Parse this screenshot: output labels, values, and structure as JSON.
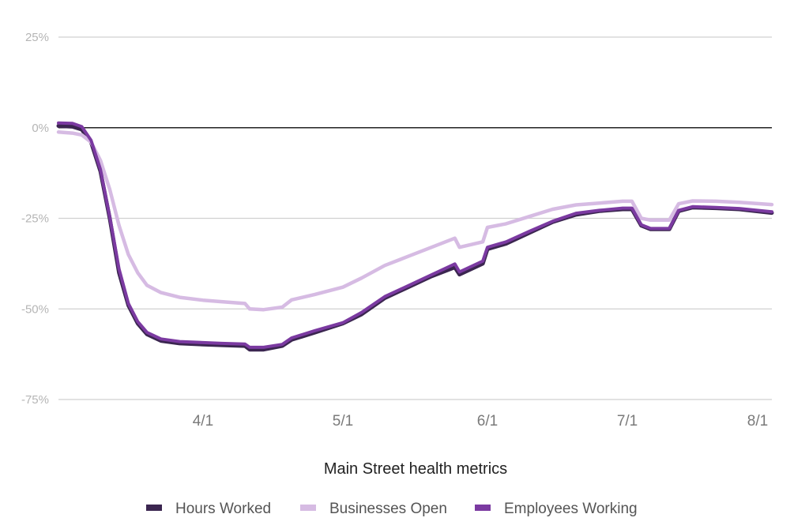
{
  "chart_data": {
    "type": "line",
    "title": "",
    "xlabel": "Main Street health metrics",
    "ylabel": "",
    "ylim": [
      -75,
      25
    ],
    "y_ticks": [
      {
        "value": 25,
        "label": "25%"
      },
      {
        "value": 0,
        "label": "0%"
      },
      {
        "value": -25,
        "label": "-25%"
      },
      {
        "value": -50,
        "label": "-50%"
      },
      {
        "value": -75,
        "label": "-75%"
      }
    ],
    "x_range": [
      "2020-03-01",
      "2020-08-01"
    ],
    "x_ticks": [
      {
        "date": "2020-04-01",
        "label": "4/1"
      },
      {
        "date": "2020-05-01",
        "label": "5/1"
      },
      {
        "date": "2020-06-01",
        "label": "6/1"
      },
      {
        "date": "2020-07-01",
        "label": "7/1"
      },
      {
        "date": "2020-08-01",
        "label": "8/1"
      }
    ],
    "grid": true,
    "legend": "bottom",
    "series": [
      {
        "name": "Hours Worked",
        "color": "#3b2650",
        "points": [
          [
            "2020-03-01",
            0.5
          ],
          [
            "2020-03-04",
            0.3
          ],
          [
            "2020-03-06",
            -0.5
          ],
          [
            "2020-03-08",
            -4
          ],
          [
            "2020-03-10",
            -12
          ],
          [
            "2020-03-12",
            -25
          ],
          [
            "2020-03-14",
            -40
          ],
          [
            "2020-03-16",
            -49
          ],
          [
            "2020-03-18",
            -54
          ],
          [
            "2020-03-20",
            -57
          ],
          [
            "2020-03-23",
            -58.8
          ],
          [
            "2020-03-27",
            -59.5
          ],
          [
            "2020-04-01",
            -59.8
          ],
          [
            "2020-04-05",
            -60
          ],
          [
            "2020-04-10",
            -60.2
          ],
          [
            "2020-04-11",
            -61.2
          ],
          [
            "2020-04-14",
            -61.2
          ],
          [
            "2020-04-18",
            -60.2
          ],
          [
            "2020-04-20",
            -58.5
          ],
          [
            "2020-04-25",
            -56.5
          ],
          [
            "2020-05-01",
            -54
          ],
          [
            "2020-05-05",
            -51.5
          ],
          [
            "2020-05-10",
            -47
          ],
          [
            "2020-05-15",
            -44
          ],
          [
            "2020-05-20",
            -41
          ],
          [
            "2020-05-25",
            -38.5
          ],
          [
            "2020-05-26",
            -40.5
          ],
          [
            "2020-05-31",
            -37.5
          ],
          [
            "2020-06-01",
            -33.5
          ],
          [
            "2020-06-05",
            -32
          ],
          [
            "2020-06-10",
            -29
          ],
          [
            "2020-06-15",
            -26
          ],
          [
            "2020-06-20",
            -24
          ],
          [
            "2020-06-25",
            -23
          ],
          [
            "2020-06-30",
            -22.5
          ],
          [
            "2020-07-02",
            -22.5
          ],
          [
            "2020-07-04",
            -27
          ],
          [
            "2020-07-06",
            -28
          ],
          [
            "2020-07-10",
            -28
          ],
          [
            "2020-07-12",
            -23
          ],
          [
            "2020-07-15",
            -22
          ],
          [
            "2020-07-20",
            -22.2
          ],
          [
            "2020-07-25",
            -22.5
          ],
          [
            "2020-08-01",
            -23.5
          ]
        ]
      },
      {
        "name": "Businesses Open",
        "color": "#d6bbe3",
        "points": [
          [
            "2020-03-01",
            -1.2
          ],
          [
            "2020-03-04",
            -1.5
          ],
          [
            "2020-03-06",
            -2
          ],
          [
            "2020-03-08",
            -4
          ],
          [
            "2020-03-10",
            -9
          ],
          [
            "2020-03-12",
            -17
          ],
          [
            "2020-03-14",
            -27
          ],
          [
            "2020-03-16",
            -35
          ],
          [
            "2020-03-18",
            -40
          ],
          [
            "2020-03-20",
            -43.5
          ],
          [
            "2020-03-23",
            -45.5
          ],
          [
            "2020-03-27",
            -46.8
          ],
          [
            "2020-04-01",
            -47.6
          ],
          [
            "2020-04-05",
            -48
          ],
          [
            "2020-04-10",
            -48.5
          ],
          [
            "2020-04-11",
            -50
          ],
          [
            "2020-04-14",
            -50.2
          ],
          [
            "2020-04-18",
            -49.5
          ],
          [
            "2020-04-20",
            -47.5
          ],
          [
            "2020-04-25",
            -46
          ],
          [
            "2020-05-01",
            -44
          ],
          [
            "2020-05-05",
            -41.5
          ],
          [
            "2020-05-10",
            -38
          ],
          [
            "2020-05-15",
            -35.5
          ],
          [
            "2020-05-20",
            -33
          ],
          [
            "2020-05-25",
            -30.5
          ],
          [
            "2020-05-26",
            -33
          ],
          [
            "2020-05-31",
            -31.5
          ],
          [
            "2020-06-01",
            -27.5
          ],
          [
            "2020-06-05",
            -26.5
          ],
          [
            "2020-06-10",
            -24.5
          ],
          [
            "2020-06-15",
            -22.5
          ],
          [
            "2020-06-20",
            -21.3
          ],
          [
            "2020-06-25",
            -20.8
          ],
          [
            "2020-06-30",
            -20.3
          ],
          [
            "2020-07-02",
            -20.3
          ],
          [
            "2020-07-04",
            -25
          ],
          [
            "2020-07-06",
            -25.5
          ],
          [
            "2020-07-10",
            -25.5
          ],
          [
            "2020-07-12",
            -21
          ],
          [
            "2020-07-15",
            -20.2
          ],
          [
            "2020-07-20",
            -20.3
          ],
          [
            "2020-07-25",
            -20.6
          ],
          [
            "2020-08-01",
            -21.2
          ]
        ]
      },
      {
        "name": "Employees Working",
        "color": "#7b3aa1",
        "points": [
          [
            "2020-03-01",
            1.3
          ],
          [
            "2020-03-04",
            1.2
          ],
          [
            "2020-03-06",
            0.3
          ],
          [
            "2020-03-08",
            -3.5
          ],
          [
            "2020-03-10",
            -11.5
          ],
          [
            "2020-03-12",
            -24.5
          ],
          [
            "2020-03-14",
            -39
          ],
          [
            "2020-03-16",
            -48.5
          ],
          [
            "2020-03-18",
            -53.5
          ],
          [
            "2020-03-20",
            -56.5
          ],
          [
            "2020-03-23",
            -58.3
          ],
          [
            "2020-03-27",
            -59
          ],
          [
            "2020-04-01",
            -59.3
          ],
          [
            "2020-04-05",
            -59.5
          ],
          [
            "2020-04-10",
            -59.7
          ],
          [
            "2020-04-11",
            -60.6
          ],
          [
            "2020-04-14",
            -60.6
          ],
          [
            "2020-04-18",
            -59.8
          ],
          [
            "2020-04-20",
            -58
          ],
          [
            "2020-04-25",
            -56
          ],
          [
            "2020-05-01",
            -53.8
          ],
          [
            "2020-05-05",
            -51
          ],
          [
            "2020-05-10",
            -46.6
          ],
          [
            "2020-05-15",
            -43.6
          ],
          [
            "2020-05-20",
            -40.6
          ],
          [
            "2020-05-25",
            -37.6
          ],
          [
            "2020-05-26",
            -39.8
          ],
          [
            "2020-05-31",
            -36.8
          ],
          [
            "2020-06-01",
            -33
          ],
          [
            "2020-06-05",
            -31.5
          ],
          [
            "2020-06-10",
            -28.6
          ],
          [
            "2020-06-15",
            -25.8
          ],
          [
            "2020-06-20",
            -23.6
          ],
          [
            "2020-06-25",
            -22.8
          ],
          [
            "2020-06-30",
            -22.2
          ],
          [
            "2020-07-02",
            -22.2
          ],
          [
            "2020-07-04",
            -26.8
          ],
          [
            "2020-07-06",
            -27.8
          ],
          [
            "2020-07-10",
            -27.8
          ],
          [
            "2020-07-12",
            -22.8
          ],
          [
            "2020-07-15",
            -21.8
          ],
          [
            "2020-07-20",
            -22
          ],
          [
            "2020-07-25",
            -22.3
          ],
          [
            "2020-08-01",
            -23.2
          ]
        ]
      }
    ]
  }
}
